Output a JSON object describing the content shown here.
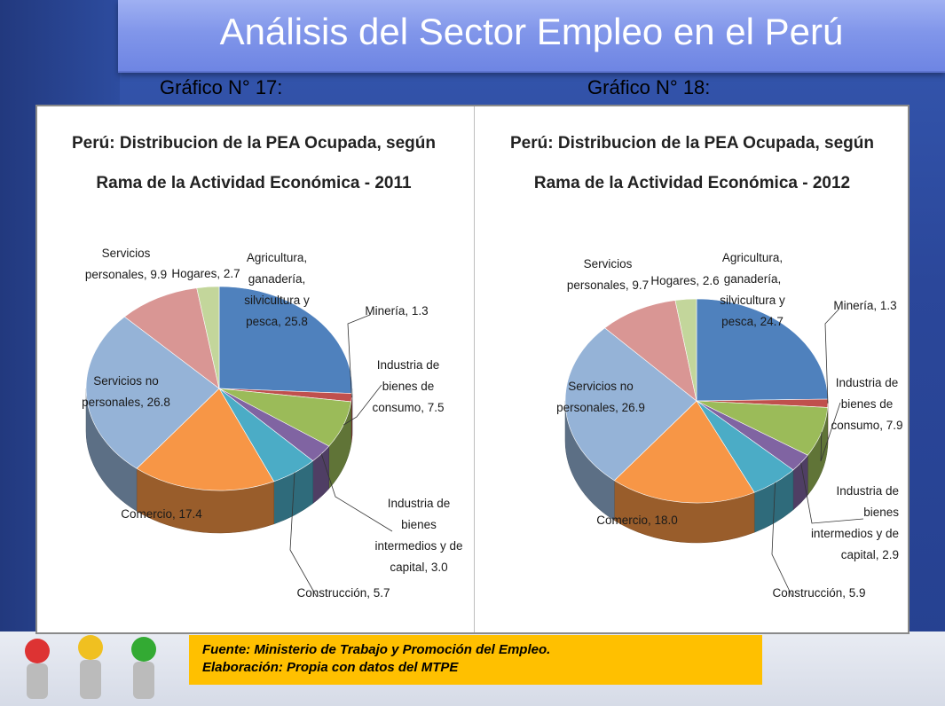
{
  "title": "Análisis del Sector Empleo en el Perú",
  "labels": {
    "left": "Gráfico N° 17:",
    "right": "Gráfico N° 18:"
  },
  "source": {
    "line1": "Fuente: Ministerio de Trabajo y Promoción del Empleo.",
    "line2": "Elaboración: Propia con datos del MTPE"
  },
  "colors": {
    "agricultura": "#4f81bd",
    "mineria": "#c0504d",
    "industria_consumo": "#9bbb59",
    "industria_intermedios": "#8064a2",
    "construccion": "#4bacc6",
    "comercio": "#f79646",
    "servicios_no_personales": "#95b3d7",
    "servicios_personales": "#d99694",
    "hogares": "#c3d69b"
  },
  "chart_data": [
    {
      "type": "pie",
      "title": [
        "Perú: Distribucion de la PEA Ocupada, según",
        "Rama de la Actividad Económica - 2011"
      ],
      "slices": [
        {
          "key": "agricultura",
          "label": [
            "Agricultura,",
            "ganadería,",
            "silvicultura y",
            "pesca, 25.8"
          ],
          "value": 25.8
        },
        {
          "key": "mineria",
          "label": [
            "Minería, 1.3"
          ],
          "value": 1.3
        },
        {
          "key": "industria_consumo",
          "label": [
            "Industria de",
            "bienes de",
            "consumo, 7.5"
          ],
          "value": 7.5
        },
        {
          "key": "industria_intermedios",
          "label": [
            "Industria de",
            "bienes",
            "intermedios y de",
            "capital, 3.0"
          ],
          "value": 3.0
        },
        {
          "key": "construccion",
          "label": [
            "Construcción, 5.7"
          ],
          "value": 5.7
        },
        {
          "key": "comercio",
          "label": [
            "Comercio, 17.4"
          ],
          "value": 17.4
        },
        {
          "key": "servicios_no_personales",
          "label": [
            "Servicios no",
            "personales, 26.8"
          ],
          "value": 26.8
        },
        {
          "key": "servicios_personales",
          "label": [
            "Servicios",
            "personales, 9.9"
          ],
          "value": 9.9
        },
        {
          "key": "hogares",
          "label": [
            "Hogares, 2.7"
          ],
          "value": 2.7
        }
      ]
    },
    {
      "type": "pie",
      "title": [
        "Perú: Distribucion de la PEA Ocupada, según",
        "Rama de la Actividad Económica - 2012"
      ],
      "slices": [
        {
          "key": "agricultura",
          "label": [
            "Agricultura,",
            "ganadería,",
            "silvicultura y",
            "pesca, 24.7"
          ],
          "value": 24.7
        },
        {
          "key": "mineria",
          "label": [
            "Minería, 1.3"
          ],
          "value": 1.3
        },
        {
          "key": "industria_consumo",
          "label": [
            "Industria de",
            "bienes de",
            "consumo, 7.9"
          ],
          "value": 7.9
        },
        {
          "key": "industria_intermedios",
          "label": [
            "Industria de",
            "bienes",
            "intermedios y de",
            "capital, 2.9"
          ],
          "value": 2.9
        },
        {
          "key": "construccion",
          "label": [
            "Construcción, 5.9"
          ],
          "value": 5.9
        },
        {
          "key": "comercio",
          "label": [
            "Comercio, 18.0"
          ],
          "value": 18.0
        },
        {
          "key": "servicios_no_personales",
          "label": [
            "Servicios no",
            "personales, 26.9"
          ],
          "value": 26.9
        },
        {
          "key": "servicios_personales",
          "label": [
            "Servicios",
            "personales, 9.7"
          ],
          "value": 9.7
        },
        {
          "key": "hogares",
          "label": [
            "Hogares, 2.6"
          ],
          "value": 2.6
        }
      ]
    }
  ]
}
